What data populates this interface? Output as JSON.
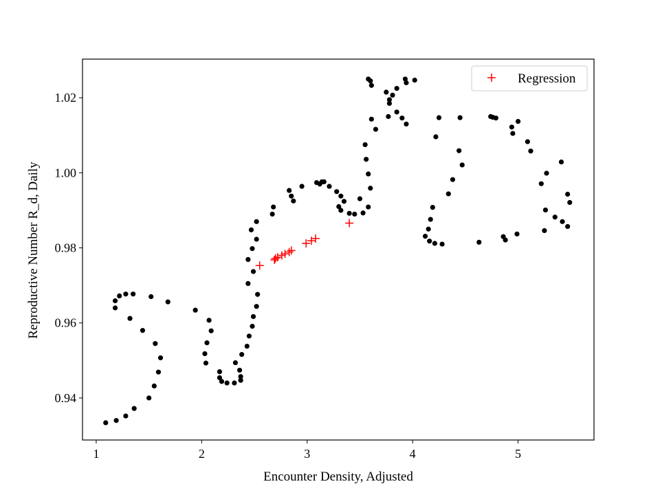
{
  "chart_data": {
    "type": "scatter",
    "xlabel": "Encounter Density, Adjusted",
    "ylabel": "Reproductive Number R_d, Daily",
    "xlim": [
      0.87,
      5.72
    ],
    "ylim": [
      0.9288,
      1.0303
    ],
    "xticks": [
      1,
      2,
      3,
      4,
      5
    ],
    "yticks": [
      0.94,
      0.96,
      0.98,
      1.0,
      1.02
    ],
    "xtick_labels": [
      "1",
      "2",
      "3",
      "4",
      "5"
    ],
    "ytick_labels": [
      "0.94",
      "0.96",
      "0.98",
      "1.00",
      "1.02"
    ],
    "legend_position": "top-right",
    "series": [
      {
        "marker": "dot",
        "color": "#000000",
        "points": [
          [
            1.09,
            0.9334
          ],
          [
            1.19,
            0.934
          ],
          [
            1.28,
            0.9352
          ],
          [
            1.36,
            0.9372
          ],
          [
            1.5,
            0.94
          ],
          [
            1.55,
            0.9432
          ],
          [
            1.59,
            0.9469
          ],
          [
            1.61,
            0.9507
          ],
          [
            1.56,
            0.9545
          ],
          [
            1.44,
            0.958
          ],
          [
            1.32,
            0.9612
          ],
          [
            1.18,
            0.964
          ],
          [
            1.18,
            0.9659
          ],
          [
            1.22,
            0.9672
          ],
          [
            1.28,
            0.9677
          ],
          [
            1.35,
            0.9677
          ],
          [
            1.52,
            0.967
          ],
          [
            1.68,
            0.9656
          ],
          [
            1.94,
            0.9634
          ],
          [
            2.07,
            0.9607
          ],
          [
            2.09,
            0.9579
          ],
          [
            2.05,
            0.9547
          ],
          [
            2.03,
            0.9518
          ],
          [
            2.04,
            0.9493
          ],
          [
            2.17,
            0.947
          ],
          [
            2.17,
            0.9454
          ],
          [
            2.19,
            0.9444
          ],
          [
            2.24,
            0.944
          ],
          [
            2.31,
            0.944
          ],
          [
            2.37,
            0.9447
          ],
          [
            2.37,
            0.9457
          ],
          [
            2.36,
            0.9474
          ],
          [
            2.32,
            0.9494
          ],
          [
            2.38,
            0.9516
          ],
          [
            2.43,
            0.9538
          ],
          [
            2.45,
            0.9565
          ],
          [
            2.48,
            0.9591
          ],
          [
            2.49,
            0.9617
          ],
          [
            2.52,
            0.9644
          ],
          [
            2.53,
            0.9676
          ],
          [
            2.44,
            0.9705
          ],
          [
            2.44,
            0.9769
          ],
          [
            2.49,
            0.9737
          ],
          [
            2.48,
            0.9798
          ],
          [
            2.52,
            0.9823
          ],
          [
            2.47,
            0.9848
          ],
          [
            2.52,
            0.987
          ],
          [
            2.67,
            0.989
          ],
          [
            2.68,
            0.9909
          ],
          [
            2.83,
            0.9953
          ],
          [
            2.85,
            0.9938
          ],
          [
            2.87,
            0.9925
          ],
          [
            2.95,
            0.9964
          ],
          [
            3.09,
            0.9974
          ],
          [
            3.12,
            0.997
          ],
          [
            3.14,
            0.9976
          ],
          [
            3.16,
            0.9976
          ],
          [
            3.21,
            0.9964
          ],
          [
            3.28,
            0.995
          ],
          [
            3.32,
            0.9938
          ],
          [
            3.35,
            0.9924
          ],
          [
            3.3,
            0.991
          ],
          [
            3.32,
            0.99
          ],
          [
            3.4,
            0.9892
          ],
          [
            3.45,
            0.989
          ],
          [
            3.5,
            0.9931
          ],
          [
            3.53,
            0.9893
          ],
          [
            3.58,
            0.9909
          ],
          [
            3.6,
            0.9959
          ],
          [
            3.58,
            0.9997
          ],
          [
            3.56,
            1.0036
          ],
          [
            3.55,
            1.0075
          ],
          [
            3.65,
            1.0116
          ],
          [
            3.61,
            1.0143
          ],
          [
            3.58,
            1.025
          ],
          [
            3.6,
            1.0245
          ],
          [
            3.61,
            1.0233
          ],
          [
            3.75,
            1.0215
          ],
          [
            3.78,
            1.0195
          ],
          [
            3.78,
            1.0185
          ],
          [
            3.81,
            1.0207
          ],
          [
            3.85,
            1.0225
          ],
          [
            3.93,
            1.025
          ],
          [
            3.94,
            1.024
          ],
          [
            4.02,
            1.0247
          ],
          [
            3.85,
            1.0162
          ],
          [
            3.77,
            1.015
          ],
          [
            3.9,
            1.0146
          ],
          [
            3.94,
            1.013
          ],
          [
            4.12,
            0.9831
          ],
          [
            4.15,
            0.985
          ],
          [
            4.17,
            0.9876
          ],
          [
            4.19,
            0.9908
          ],
          [
            4.16,
            0.9818
          ],
          [
            4.21,
            0.9812
          ],
          [
            4.28,
            0.981
          ],
          [
            4.22,
            1.0096
          ],
          [
            4.25,
            1.0147
          ],
          [
            4.34,
            0.9944
          ],
          [
            4.38,
            0.9982
          ],
          [
            4.44,
            1.0059
          ],
          [
            4.47,
            1.0021
          ],
          [
            4.45,
            1.0147
          ],
          [
            4.63,
            0.9815
          ],
          [
            4.74,
            1.015
          ],
          [
            4.76,
            1.0148
          ],
          [
            4.79,
            1.0146
          ],
          [
            4.86,
            0.983
          ],
          [
            4.88,
            0.9821
          ],
          [
            4.94,
            1.0122
          ],
          [
            4.95,
            1.0105
          ],
          [
            4.99,
            0.9837
          ],
          [
            5.0,
            1.0137
          ],
          [
            5.09,
            1.0083
          ],
          [
            5.12,
            1.0058
          ],
          [
            5.22,
            0.9971
          ],
          [
            5.25,
            0.9846
          ],
          [
            5.26,
            0.9901
          ],
          [
            5.27,
            0.9999
          ],
          [
            5.35,
            0.9882
          ],
          [
            5.41,
            1.0029
          ],
          [
            5.42,
            0.987
          ],
          [
            5.47,
            0.9857
          ],
          [
            5.47,
            0.9943
          ],
          [
            5.49,
            0.9921
          ]
        ]
      },
      {
        "name": "Regression",
        "marker": "plus",
        "color": "#ff0000",
        "points": [
          [
            2.55,
            0.9753
          ],
          [
            2.69,
            0.9768
          ],
          [
            2.7,
            0.9772
          ],
          [
            2.72,
            0.9775
          ],
          [
            2.76,
            0.978
          ],
          [
            2.79,
            0.9784
          ],
          [
            2.83,
            0.9789
          ],
          [
            2.85,
            0.9793
          ],
          [
            2.99,
            0.9812
          ],
          [
            3.04,
            0.9819
          ],
          [
            3.08,
            0.9825
          ],
          [
            3.4,
            0.9866
          ]
        ]
      }
    ]
  }
}
